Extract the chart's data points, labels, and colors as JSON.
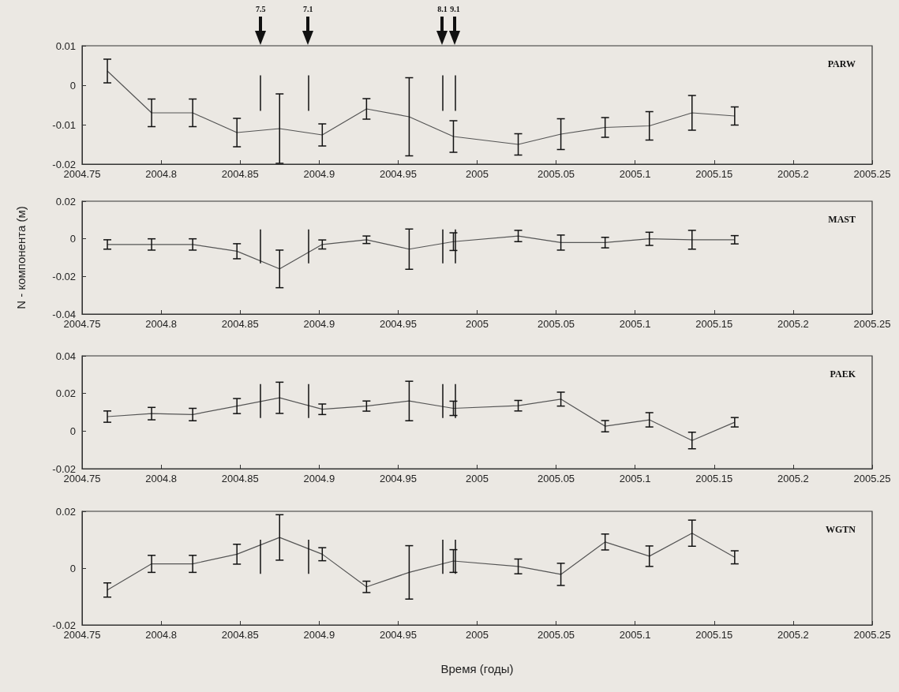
{
  "chart_data": [
    {
      "type": "line",
      "title": "PARW",
      "marker": "none",
      "grid": false,
      "annotations": [
        "7.5",
        "7.1",
        "8.1",
        "9.1"
      ],
      "x": [
        2004.766,
        2004.794,
        2004.82,
        2004.848,
        2004.875,
        2004.902,
        2004.93,
        2004.957,
        2004.985,
        2005.026,
        2005.053,
        2005.081,
        2005.109,
        2005.136,
        2005.163
      ],
      "series": [
        {
          "color": "#555555",
          "values": [
            0.0036,
            -0.007,
            -0.007,
            -0.012,
            -0.011,
            -0.0126,
            -0.006,
            -0.008,
            -0.013,
            -0.015,
            -0.0124,
            -0.0107,
            -0.0103,
            -0.007,
            -0.0078
          ],
          "errors": [
            0.003,
            0.0035,
            0.0035,
            0.0036,
            0.0088,
            0.0028,
            0.0026,
            0.0099,
            0.004,
            0.0027,
            0.0039,
            0.0025,
            0.0036,
            0.0044,
            0.0023
          ]
        }
      ],
      "xlim": [
        2004.75,
        2005.25
      ],
      "xticks": [
        2004.75,
        2004.8,
        2004.85,
        2004.9,
        2004.95,
        2005,
        2005.05,
        2005.1,
        2005.15,
        2005.2,
        2005.25
      ],
      "ylim": [
        -0.02,
        0.01
      ],
      "yticks": [
        -0.02,
        -0.01,
        0,
        0.01
      ],
      "ref_lines": [
        {
          "axis": "x",
          "value": 2004.863
        },
        {
          "axis": "x",
          "value": 2004.893
        },
        {
          "axis": "x",
          "value": 2004.978
        },
        {
          "axis": "x",
          "value": 2004.986
        }
      ]
    },
    {
      "type": "line",
      "title": "MAST",
      "ylabel": "N - компонента (м)",
      "marker": "none",
      "grid": false,
      "x": [
        2004.766,
        2004.794,
        2004.82,
        2004.848,
        2004.875,
        2004.902,
        2004.93,
        2004.957,
        2004.985,
        2005.026,
        2005.053,
        2005.081,
        2005.109,
        2005.136,
        2005.163
      ],
      "series": [
        {
          "color": "#555555",
          "values": [
            -0.003,
            -0.003,
            -0.003,
            -0.0066,
            -0.016,
            -0.003,
            -0.0005,
            -0.0055,
            -0.0015,
            0.0015,
            -0.002,
            -0.002,
            0,
            -0.0005,
            -0.0005
          ],
          "errors": [
            0.0025,
            0.003,
            0.003,
            0.004,
            0.01,
            0.0024,
            0.002,
            0.0107,
            0.0047,
            0.003,
            0.004,
            0.0028,
            0.0035,
            0.005,
            0.0022
          ]
        }
      ],
      "xlim": [
        2004.75,
        2005.25
      ],
      "xticks": [
        2004.75,
        2004.8,
        2004.85,
        2004.9,
        2004.95,
        2005,
        2005.05,
        2005.1,
        2005.15,
        2005.2,
        2005.25
      ],
      "ylim": [
        -0.04,
        0.02
      ],
      "yticks": [
        -0.04,
        -0.02,
        0,
        0.02
      ],
      "ref_lines": [
        {
          "axis": "x",
          "value": 2004.863
        },
        {
          "axis": "x",
          "value": 2004.893
        },
        {
          "axis": "x",
          "value": 2004.978
        },
        {
          "axis": "x",
          "value": 2004.986
        }
      ]
    },
    {
      "type": "line",
      "title": "PAEK",
      "marker": "none",
      "grid": false,
      "x": [
        2004.766,
        2004.794,
        2004.82,
        2004.848,
        2004.875,
        2004.902,
        2004.93,
        2004.957,
        2004.985,
        2005.026,
        2005.053,
        2005.081,
        2005.109,
        2005.136,
        2005.163
      ],
      "series": [
        {
          "color": "#555555",
          "values": [
            0.0077,
            0.0093,
            0.0088,
            0.0133,
            0.0177,
            0.0116,
            0.0133,
            0.016,
            0.0121,
            0.0135,
            0.017,
            0.0026,
            0.006,
            -0.005,
            0.0047
          ],
          "errors": [
            0.003,
            0.0033,
            0.0033,
            0.004,
            0.0083,
            0.0028,
            0.0027,
            0.0105,
            0.0038,
            0.0028,
            0.0037,
            0.003,
            0.0038,
            0.0044,
            0.0025
          ]
        }
      ],
      "xlim": [
        2004.75,
        2005.25
      ],
      "xticks": [
        2004.75,
        2004.8,
        2004.85,
        2004.9,
        2004.95,
        2005,
        2005.05,
        2005.1,
        2005.15,
        2005.2,
        2005.25
      ],
      "ylim": [
        -0.02,
        0.04
      ],
      "yticks": [
        -0.02,
        0,
        0.02,
        0.04
      ],
      "ref_lines": [
        {
          "axis": "x",
          "value": 2004.863
        },
        {
          "axis": "x",
          "value": 2004.893
        },
        {
          "axis": "x",
          "value": 2004.978
        },
        {
          "axis": "x",
          "value": 2004.986
        }
      ]
    },
    {
      "type": "line",
      "title": "WGTN",
      "xlabel": "Время (годы)",
      "marker": "none",
      "grid": false,
      "x": [
        2004.766,
        2004.794,
        2004.82,
        2004.848,
        2004.875,
        2004.902,
        2004.93,
        2004.957,
        2004.985,
        2005.026,
        2005.053,
        2005.081,
        2005.109,
        2005.136,
        2005.163
      ],
      "series": [
        {
          "color": "#555555",
          "values": [
            -0.0077,
            0.0015,
            0.0015,
            0.0049,
            0.0108,
            0.0049,
            -0.0066,
            -0.0015,
            0.0025,
            0.0006,
            -0.0022,
            0.0092,
            0.0042,
            0.0123,
            0.0038
          ],
          "errors": [
            0.0025,
            0.003,
            0.003,
            0.0035,
            0.008,
            0.0023,
            0.002,
            0.0094,
            0.004,
            0.0026,
            0.0039,
            0.0028,
            0.0036,
            0.0046,
            0.0023
          ]
        }
      ],
      "xlim": [
        2004.75,
        2005.25
      ],
      "xticks": [
        2004.75,
        2004.8,
        2004.85,
        2004.9,
        2004.95,
        2005,
        2005.05,
        2005.1,
        2005.15,
        2005.2,
        2005.25
      ],
      "ylim": [
        -0.02,
        0.02
      ],
      "yticks": [
        -0.02,
        0,
        0.02
      ],
      "ref_lines": [
        {
          "axis": "x",
          "value": 2004.863
        },
        {
          "axis": "x",
          "value": 2004.893
        },
        {
          "axis": "x",
          "value": 2004.978
        },
        {
          "axis": "x",
          "value": 2004.986
        }
      ]
    }
  ]
}
